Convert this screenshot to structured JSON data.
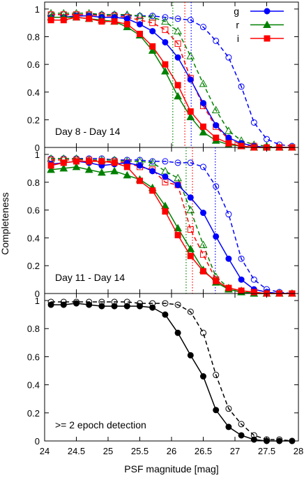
{
  "colors": {
    "g": "#0000ff",
    "r": "#008000",
    "i": "#ff0000",
    "all": "#000000"
  },
  "chart_data": {
    "type": "line",
    "ylabel": "Completeness",
    "xlabel": "PSF magnitude [mag]",
    "xlim": [
      24,
      28
    ],
    "ylim": [
      0,
      1.05
    ],
    "x_ticks": [
      24,
      24.5,
      25,
      25.5,
      26,
      26.5,
      27,
      27.5,
      28
    ],
    "x_tick_labels": [
      "24",
      "24.5",
      "25",
      "25.5",
      "26",
      "26.5",
      "27",
      "27.5",
      "28"
    ],
    "y_ticks": [
      0,
      0.2,
      0.4,
      0.6,
      0.8,
      1
    ],
    "y_tick_labels": [
      "0",
      "0.2",
      "0.4",
      "0.6",
      "0.8",
      "1"
    ],
    "grid": false,
    "legend_position": "top-right",
    "legend": [
      {
        "name": "g",
        "color_key": "g",
        "marker": "circle"
      },
      {
        "name": "r",
        "color_key": "r",
        "marker": "triangle"
      },
      {
        "name": "i",
        "color_key": "i",
        "marker": "square"
      }
    ],
    "panels": [
      {
        "label": "Day 8 - Day 14",
        "x": [
          24.1,
          24.3,
          24.5,
          24.7,
          24.9,
          25.1,
          25.3,
          25.5,
          25.7,
          25.9,
          26.1,
          26.3,
          26.5,
          26.7,
          26.9,
          27.1,
          27.3,
          27.5,
          27.7,
          27.9
        ],
        "vlines": [
          {
            "color_key": "g",
            "x": 26.31
          },
          {
            "color_key": "r",
            "x": 26.02
          },
          {
            "color_key": "i",
            "x": 26.21
          }
        ],
        "series": [
          {
            "color_key": "g",
            "marker": "circle",
            "style": "solid",
            "values": [
              0.94,
              0.94,
              0.95,
              0.95,
              0.94,
              0.94,
              0.93,
              0.89,
              0.84,
              0.76,
              0.65,
              0.49,
              0.32,
              0.16,
              0.07,
              0.03,
              0.01,
              0.0,
              0.0,
              0.0
            ]
          },
          {
            "color_key": "r",
            "marker": "triangle",
            "style": "solid",
            "values": [
              0.94,
              0.94,
              0.94,
              0.93,
              0.92,
              0.91,
              0.87,
              0.81,
              0.7,
              0.55,
              0.37,
              0.22,
              0.11,
              0.05,
              0.02,
              0.01,
              0.0,
              0.0,
              0.0,
              0.0
            ]
          },
          {
            "color_key": "i",
            "marker": "square",
            "style": "solid",
            "values": [
              0.92,
              0.92,
              0.94,
              0.93,
              0.91,
              0.91,
              0.89,
              0.82,
              0.73,
              0.6,
              0.45,
              0.26,
              0.15,
              0.07,
              0.03,
              0.01,
              0.0,
              0.0,
              0.0,
              0.0
            ]
          },
          {
            "color_key": "g",
            "marker": "circle",
            "style": "dashed",
            "values": [
              0.96,
              0.96,
              0.96,
              0.96,
              0.96,
              0.96,
              0.95,
              0.95,
              0.95,
              0.94,
              0.93,
              0.92,
              0.87,
              0.77,
              0.65,
              0.44,
              0.18,
              0.06,
              0.02,
              0.01
            ]
          },
          {
            "color_key": "r",
            "marker": "triangle",
            "style": "dashed",
            "values": [
              0.97,
              0.97,
              0.97,
              0.97,
              0.96,
              0.96,
              0.96,
              0.95,
              0.94,
              0.91,
              0.84,
              0.66,
              0.46,
              0.27,
              0.12,
              0.05,
              0.02,
              0.01,
              0.0,
              0.0
            ]
          },
          {
            "color_key": "i",
            "marker": "square",
            "style": "dashed",
            "values": [
              0.96,
              0.96,
              0.96,
              0.96,
              0.95,
              0.95,
              0.94,
              0.92,
              0.9,
              0.85,
              0.75,
              0.5,
              0.3,
              0.15,
              0.06,
              0.02,
              0.01,
              0.0,
              0.0,
              0.0
            ]
          }
        ]
      },
      {
        "label": "Day 11 - Day 14",
        "x": [
          24.1,
          24.3,
          24.5,
          24.7,
          24.9,
          25.1,
          25.3,
          25.5,
          25.7,
          25.9,
          26.1,
          26.3,
          26.5,
          26.7,
          26.9,
          27.1,
          27.3,
          27.5,
          27.7,
          27.9
        ],
        "vlines": [
          {
            "color_key": "g",
            "x": 26.69
          },
          {
            "color_key": "r",
            "x": 26.23
          },
          {
            "color_key": "i",
            "x": 26.33
          }
        ],
        "series": [
          {
            "color_key": "g",
            "marker": "circle",
            "style": "solid",
            "values": [
              0.93,
              0.94,
              0.95,
              0.94,
              0.92,
              0.93,
              0.94,
              0.92,
              0.88,
              0.84,
              0.78,
              0.69,
              0.58,
              0.41,
              0.25,
              0.1,
              0.03,
              0.01,
              0.0,
              0.0
            ]
          },
          {
            "color_key": "r",
            "marker": "triangle",
            "style": "solid",
            "values": [
              0.89,
              0.9,
              0.91,
              0.89,
              0.87,
              0.88,
              0.85,
              0.82,
              0.76,
              0.63,
              0.47,
              0.32,
              0.17,
              0.08,
              0.03,
              0.01,
              0.0,
              0.0,
              0.0,
              0.0
            ]
          },
          {
            "color_key": "i",
            "marker": "square",
            "style": "solid",
            "values": [
              0.92,
              0.94,
              0.95,
              0.95,
              0.95,
              0.94,
              0.91,
              0.81,
              0.74,
              0.59,
              0.42,
              0.27,
              0.16,
              0.09,
              0.04,
              0.02,
              0.01,
              0.0,
              0.0,
              0.0
            ]
          },
          {
            "color_key": "g",
            "marker": "circle",
            "style": "dashed",
            "values": [
              0.97,
              0.97,
              0.97,
              0.97,
              0.97,
              0.96,
              0.96,
              0.96,
              0.95,
              0.95,
              0.94,
              0.94,
              0.91,
              0.77,
              0.57,
              0.25,
              0.1,
              0.03,
              0.01,
              0.0
            ]
          },
          {
            "color_key": "r",
            "marker": "triangle",
            "style": "dashed",
            "values": [
              0.97,
              0.97,
              0.97,
              0.96,
              0.96,
              0.96,
              0.95,
              0.95,
              0.94,
              0.88,
              0.83,
              0.6,
              0.35,
              0.12,
              0.04,
              0.02,
              0.0,
              0.0,
              0.0,
              0.0
            ]
          },
          {
            "color_key": "i",
            "marker": "square",
            "style": "dashed",
            "values": [
              0.96,
              0.96,
              0.96,
              0.96,
              0.95,
              0.95,
              0.94,
              0.91,
              0.89,
              0.8,
              0.78,
              0.46,
              0.28,
              0.1,
              0.03,
              0.01,
              0.0,
              0.0,
              0.0,
              0.0
            ]
          }
        ]
      },
      {
        "label": ">= 2 epoch detection",
        "x": [
          24.1,
          24.3,
          24.5,
          24.7,
          24.9,
          25.1,
          25.3,
          25.5,
          25.7,
          25.9,
          26.1,
          26.3,
          26.5,
          26.7,
          26.9,
          27.1,
          27.3,
          27.5,
          27.7,
          27.9
        ],
        "vlines": [],
        "series": [
          {
            "color_key": "all",
            "marker": "circle",
            "style": "solid",
            "values": [
              0.97,
              0.97,
              0.98,
              0.97,
              0.96,
              0.96,
              0.96,
              0.96,
              0.95,
              0.9,
              0.77,
              0.61,
              0.46,
              0.22,
              0.1,
              0.04,
              0.01,
              0.0,
              0.0,
              0.0
            ]
          },
          {
            "color_key": "all",
            "marker": "circle",
            "style": "dashed",
            "values": [
              0.99,
              0.99,
              0.99,
              0.99,
              0.99,
              0.99,
              0.99,
              0.98,
              0.98,
              0.98,
              0.97,
              0.92,
              0.77,
              0.47,
              0.23,
              0.12,
              0.04,
              0.01,
              0.01,
              0.0
            ]
          }
        ]
      }
    ]
  }
}
